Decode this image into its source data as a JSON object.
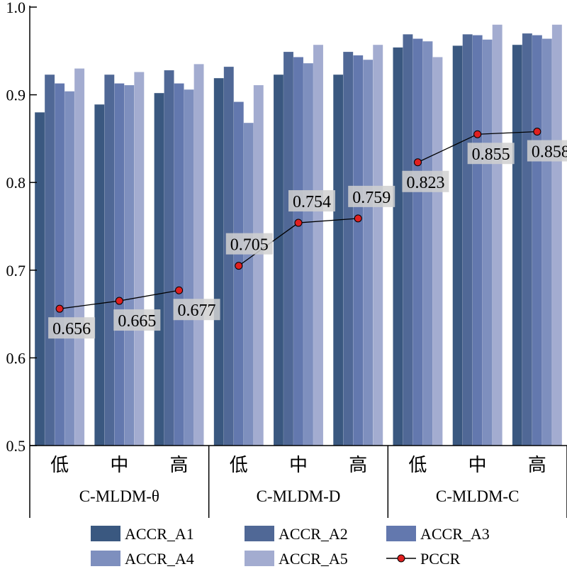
{
  "chart_data": {
    "type": "bar",
    "groups": [
      "C-MLDM-θ",
      "C-MLDM-D",
      "C-MLDM-C"
    ],
    "categories": [
      "低",
      "中",
      "高",
      "低",
      "中",
      "高",
      "低",
      "中",
      "高"
    ],
    "ylim": [
      0.5,
      1.0
    ],
    "yticks": [
      "0.5",
      "0.6",
      "0.7",
      "0.8",
      "0.9",
      "1.0"
    ],
    "series": [
      {
        "name": "ACCR_A1",
        "color": "#3a5880",
        "values": [
          0.88,
          0.889,
          0.902,
          0.919,
          0.923,
          0.923,
          0.954,
          0.956,
          0.957
        ]
      },
      {
        "name": "ACCR_A2",
        "color": "#506896",
        "values": [
          0.923,
          0.923,
          0.928,
          0.932,
          0.949,
          0.949,
          0.969,
          0.969,
          0.97
        ]
      },
      {
        "name": "ACCR_A3",
        "color": "#6378ae",
        "values": [
          0.913,
          0.913,
          0.913,
          0.892,
          0.943,
          0.945,
          0.964,
          0.968,
          0.968
        ]
      },
      {
        "name": "ACCR_A4",
        "color": "#7e8fbe",
        "values": [
          0.904,
          0.911,
          0.906,
          0.868,
          0.936,
          0.94,
          0.961,
          0.963,
          0.964
        ]
      },
      {
        "name": "ACCR_A5",
        "color": "#a3acd0",
        "values": [
          0.93,
          0.926,
          0.935,
          0.911,
          0.957,
          0.957,
          0.943,
          0.98,
          0.98
        ]
      }
    ],
    "line": {
      "name": "PCCR",
      "color": "#e02020",
      "values": [
        0.656,
        0.665,
        0.677,
        0.705,
        0.754,
        0.759,
        0.823,
        0.855,
        0.858
      ],
      "labels": [
        "0.656",
        "0.665",
        "0.677",
        "0.705",
        "0.754",
        "0.759",
        "0.823",
        "0.855",
        "0.858"
      ]
    },
    "legend": "bottom",
    "grid": false
  }
}
